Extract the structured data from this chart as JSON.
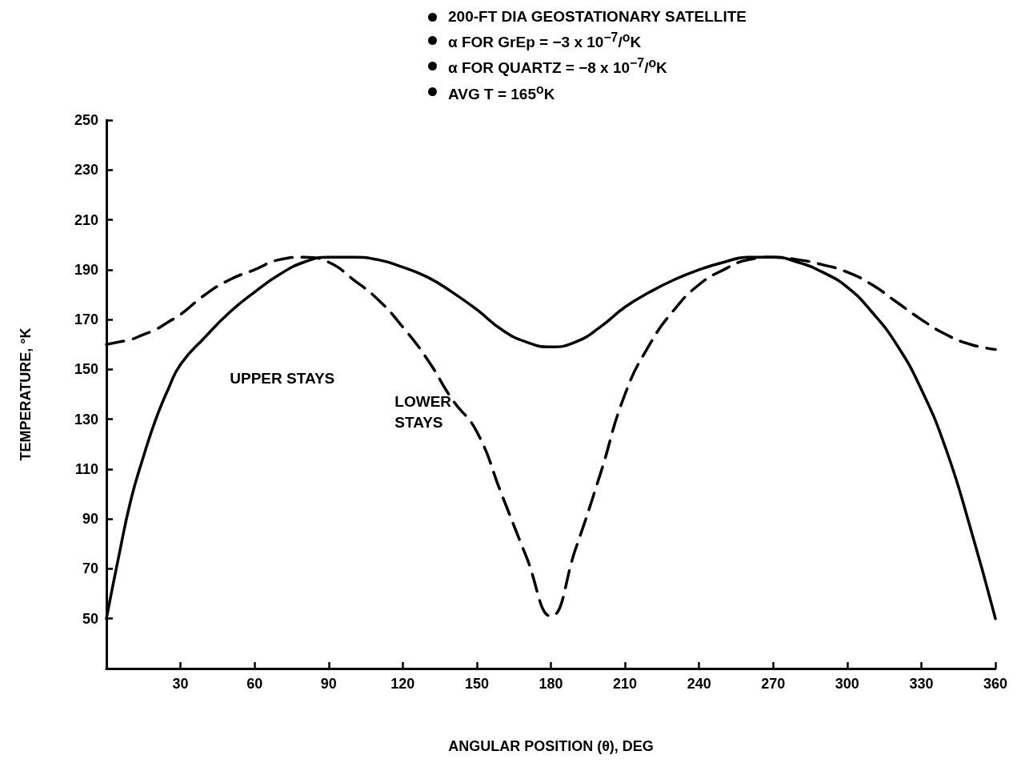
{
  "chart_data": {
    "type": "line",
    "xlabel": "ANGULAR POSITION (θ), DEG",
    "ylabel": "TEMPERATURE, °K",
    "x": [
      0,
      5,
      10,
      15,
      20,
      25,
      30,
      40,
      50,
      60,
      70,
      80,
      90,
      100,
      110,
      120,
      130,
      140,
      150,
      160,
      170,
      180,
      190,
      200,
      210,
      220,
      230,
      240,
      250,
      260,
      270,
      280,
      290,
      300,
      310,
      320,
      330,
      340,
      350,
      360
    ],
    "series": [
      {
        "name": "UPPER STAYS",
        "color": "#000000",
        "line_style": "solid",
        "values": [
          50,
          75,
          98,
          115,
          130,
          142,
          152,
          163,
          173,
          181,
          188,
          193,
          195,
          195,
          194,
          191,
          187,
          181,
          174,
          166,
          161,
          159,
          161,
          167,
          175,
          181,
          186,
          190,
          193,
          195,
          195,
          193,
          189,
          183,
          173,
          160,
          142,
          118,
          86,
          50
        ]
      },
      {
        "name": "LOWER STAYS",
        "color": "#000000",
        "line_style": "dashed",
        "values": [
          160,
          161,
          162,
          164,
          166,
          169,
          172,
          180,
          186,
          190,
          194,
          195,
          193,
          186,
          178,
          167,
          154,
          138,
          125,
          100,
          75,
          51,
          78,
          108,
          140,
          160,
          174,
          184,
          190,
          194,
          195,
          194,
          192,
          189,
          184,
          177,
          170,
          164,
          160,
          158
        ]
      }
    ],
    "xlim": [
      0,
      360
    ],
    "xticks": [
      30,
      60,
      90,
      120,
      150,
      180,
      210,
      240,
      270,
      300,
      330,
      360
    ],
    "ylim": [
      30,
      250
    ],
    "yticks": [
      50,
      70,
      90,
      110,
      130,
      150,
      170,
      190,
      210,
      230,
      250
    ],
    "grid": false,
    "marker": "none",
    "annotations": [
      "200-FT DIA GEOSTATIONARY SATELLITE",
      "α FOR GrEp = −3 x 10$^{−7}$/$^{o}$K",
      "α FOR QUARTZ = −8 x 10$^{−7}$/$^{o}$K",
      "AVG T = 165$^{o}$K"
    ]
  }
}
